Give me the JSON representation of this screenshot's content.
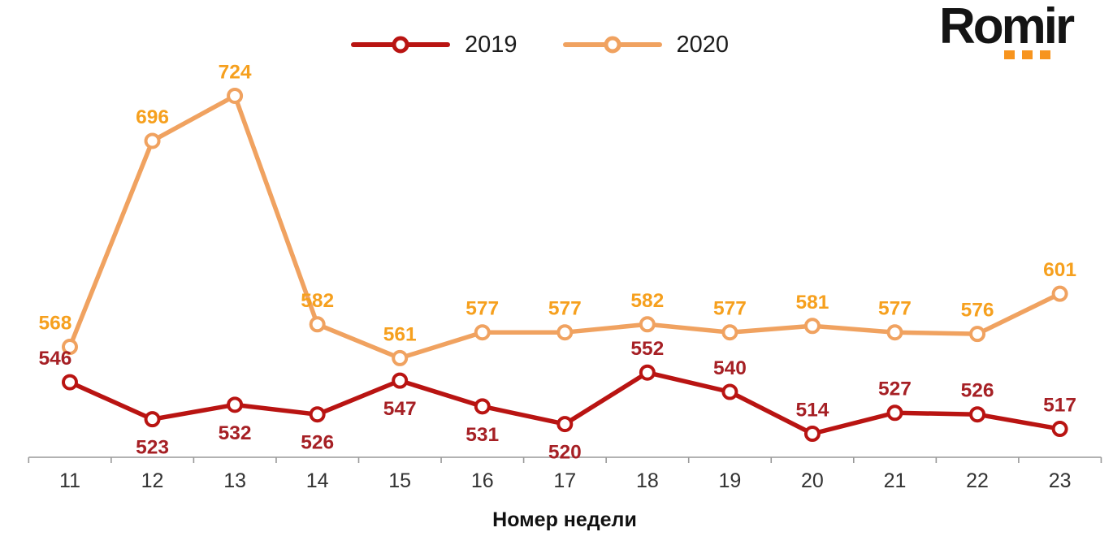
{
  "logo": {
    "text": "Romir",
    "dot_color": "#F7941E"
  },
  "legend": {
    "items": [
      {
        "label": "2019",
        "color": "#B91412"
      },
      {
        "label": "2020",
        "color": "#F0A260"
      }
    ]
  },
  "chart_data": {
    "type": "line",
    "x": [
      11,
      12,
      13,
      14,
      15,
      16,
      17,
      18,
      19,
      20,
      21,
      22,
      23
    ],
    "xlabel": "Номер недели",
    "grid": false,
    "y_axis_visible": false,
    "legend_position": "top",
    "axis_color": "#999999",
    "tick_label_color": "#333333",
    "series": [
      {
        "name": "2020",
        "color": "#F0A260",
        "label_color": "#F6A01E",
        "values": [
          568,
          696,
          724,
          582,
          561,
          577,
          577,
          582,
          577,
          581,
          577,
          576,
          601
        ],
        "label_positions": [
          "above",
          "above",
          "above",
          "above",
          "above",
          "above",
          "above",
          "above",
          "above",
          "above",
          "above",
          "above",
          "above"
        ]
      },
      {
        "name": "2019",
        "color": "#B91412",
        "label_color": "#A62025",
        "values": [
          546,
          523,
          532,
          526,
          547,
          531,
          520,
          552,
          540,
          514,
          527,
          526,
          517
        ],
        "label_positions": [
          "above",
          "below",
          "below",
          "below",
          "below",
          "below",
          "below",
          "above",
          "above",
          "above",
          "above",
          "above",
          "above"
        ]
      }
    ]
  }
}
